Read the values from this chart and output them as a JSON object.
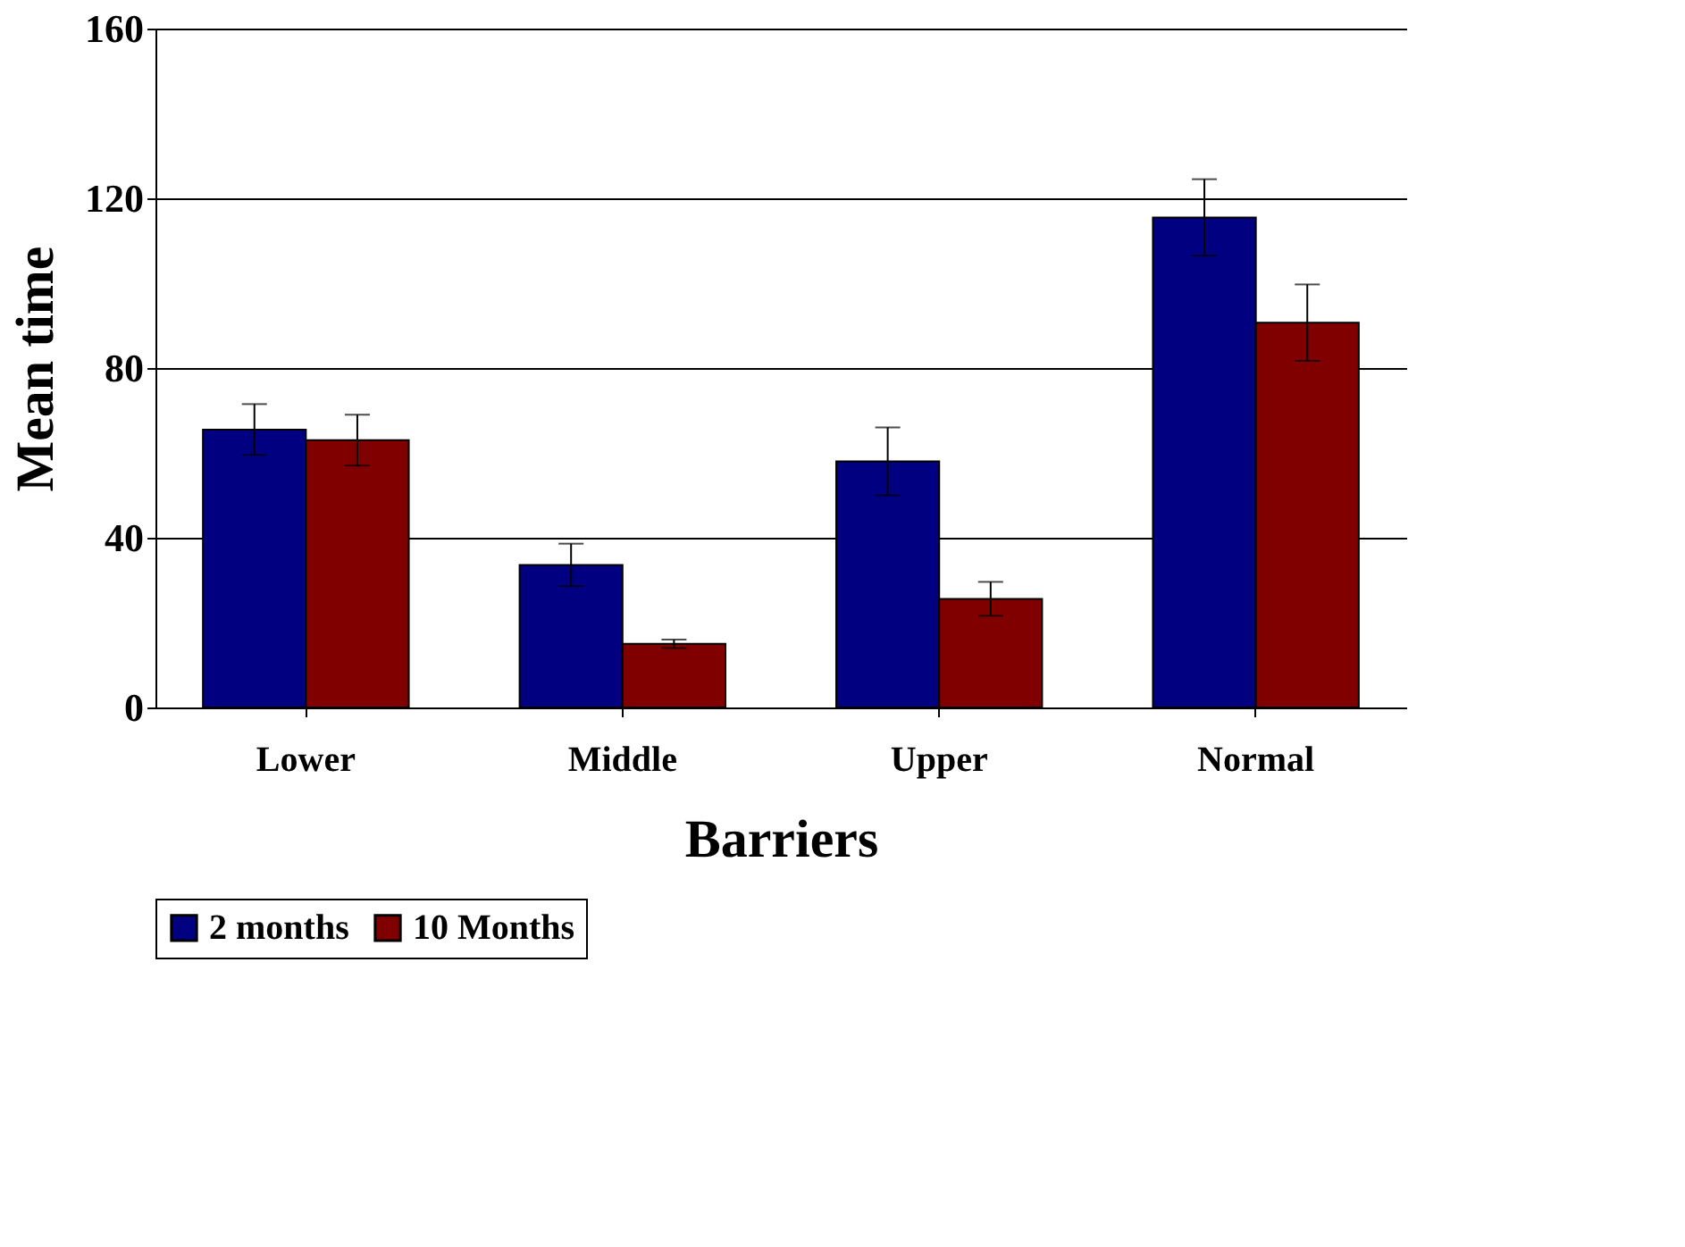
{
  "chart_data": {
    "type": "bar",
    "xlabel": "Barriers",
    "ylabel": "Mean time",
    "categories": [
      "Lower",
      "Middle",
      "Upper",
      "Normal"
    ],
    "series": [
      {
        "name": "2 months",
        "color": "#000080",
        "values": [
          65.5,
          33.6,
          58,
          115.5
        ],
        "errors": [
          6,
          5,
          8,
          9
        ]
      },
      {
        "name": "10 Months",
        "color": "#800000",
        "values": [
          63,
          15,
          25.6,
          90.7
        ],
        "errors": [
          6,
          1,
          4,
          9
        ]
      }
    ],
    "ylim": [
      0,
      160
    ],
    "yticks": [
      0,
      40,
      80,
      120,
      160
    ],
    "grid": "y",
    "legend": "bottom"
  }
}
